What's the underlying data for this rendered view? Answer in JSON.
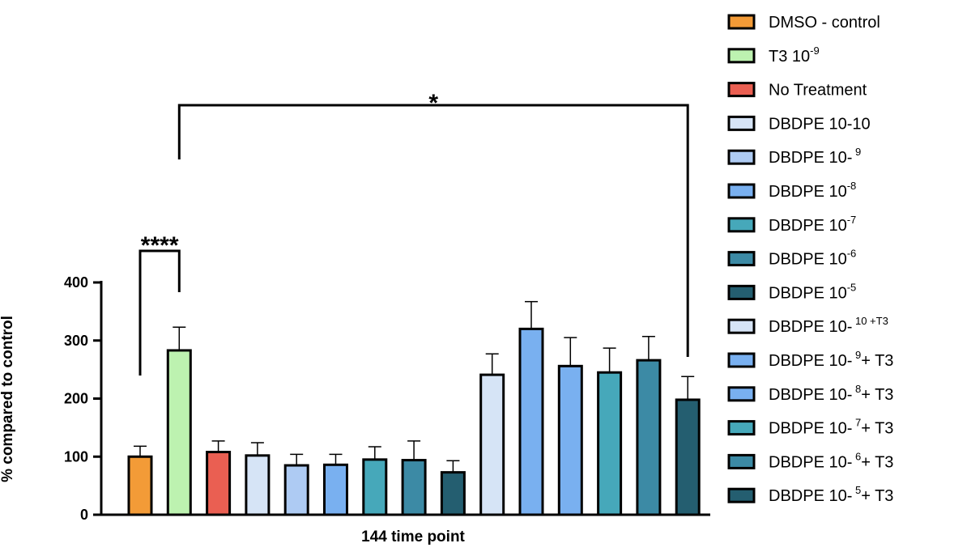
{
  "chart_data": {
    "type": "bar",
    "xlabel": "144 time point",
    "ylabel": "% compared to control",
    "ylim": [
      0,
      400
    ],
    "yticks": [
      0,
      100,
      200,
      300,
      400
    ],
    "series": [
      {
        "name_main": "DMSO - control",
        "name_sup": "",
        "name_tail": "",
        "value": 100,
        "error": 18,
        "color": "#F39B37"
      },
      {
        "name_main": "T3 10",
        "name_sup": "-9",
        "name_tail": "",
        "value": 283,
        "error": 40,
        "color": "#BDF2B0"
      },
      {
        "name_main": "No Treatment",
        "name_sup": "",
        "name_tail": "",
        "value": 108,
        "error": 19,
        "color": "#EA5F52"
      },
      {
        "name_main": "DBDPE 10-10",
        "name_sup": "",
        "name_tail": "",
        "value": 102,
        "error": 22,
        "color": "#D6E4F6"
      },
      {
        "name_main": "DBDPE 10-",
        "name_sup": " 9",
        "name_tail": "",
        "value": 85,
        "error": 19,
        "color": "#AECBF3"
      },
      {
        "name_main": "DBDPE 10",
        "name_sup": "-8",
        "name_tail": "",
        "value": 86,
        "error": 18,
        "color": "#79B0F0"
      },
      {
        "name_main": "DBDPE 10",
        "name_sup": "-7",
        "name_tail": "",
        "value": 95,
        "error": 22,
        "color": "#46A8BA"
      },
      {
        "name_main": "DBDPE 10",
        "name_sup": "-6",
        "name_tail": "",
        "value": 94,
        "error": 33,
        "color": "#3C8AA5"
      },
      {
        "name_main": "DBDPE 10",
        "name_sup": "-5",
        "name_tail": "",
        "value": 73,
        "error": 20,
        "color": "#245E70"
      },
      {
        "name_main": "DBDPE 10-",
        "name_sup": " 10 +T3",
        "name_tail": "",
        "value": 241,
        "error": 36,
        "color": "#D6E4F6"
      },
      {
        "name_main": "DBDPE 10-",
        "name_sup": " 9",
        "name_tail": "+ T3",
        "value": 320,
        "error": 47,
        "color": "#79B0F0"
      },
      {
        "name_main": "DBDPE 10-",
        "name_sup": " 8",
        "name_tail": "+ T3",
        "value": 256,
        "error": 49,
        "color": "#79B0F0"
      },
      {
        "name_main": "DBDPE 10-",
        "name_sup": " 7",
        "name_tail": "+ T3",
        "value": 245,
        "error": 42,
        "color": "#46A8BA"
      },
      {
        "name_main": "DBDPE 10-",
        "name_sup": " 6",
        "name_tail": "+ T3",
        "value": 266,
        "error": 41,
        "color": "#3C8AA5"
      },
      {
        "name_main": "DBDPE 10-",
        "name_sup": " 5",
        "name_tail": "+ T3",
        "value": 198,
        "error": 40,
        "color": "#245E70"
      }
    ],
    "significance": [
      {
        "from": 0,
        "to": 1,
        "label": "****"
      },
      {
        "from": 1,
        "to": 14,
        "label": "*"
      }
    ],
    "legend_position": "right",
    "grid": false
  }
}
